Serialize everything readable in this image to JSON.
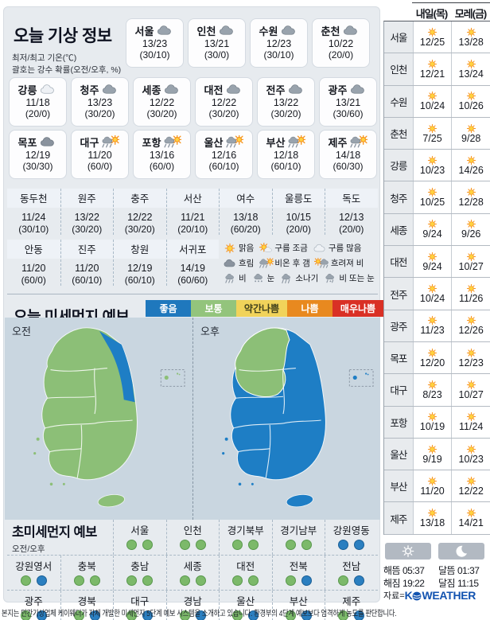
{
  "header": {
    "title": "오늘 기상 정보",
    "subtitle1": "최저/최고 기온(℃)",
    "subtitle2": "괄호는 강수 확률(오전/오후, %)"
  },
  "today": {
    "row1": [
      {
        "name": "서울",
        "icon": "cloud-gray",
        "temp": "13/23",
        "prob": "(30/10)"
      },
      {
        "name": "인천",
        "icon": "cloud-gray",
        "temp": "13/21",
        "prob": "(30/0)"
      },
      {
        "name": "수원",
        "icon": "cloud-gray",
        "temp": "12/23",
        "prob": "(30/10)"
      },
      {
        "name": "춘천",
        "icon": "cloud-gray",
        "temp": "10/22",
        "prob": "(20/0)"
      }
    ],
    "row2": [
      {
        "name": "강릉",
        "icon": "cloud-light",
        "temp": "11/18",
        "prob": "(20/0)"
      },
      {
        "name": "청주",
        "icon": "cloud-gray",
        "temp": "13/23",
        "prob": "(30/20)"
      },
      {
        "name": "세종",
        "icon": "cloud-gray",
        "temp": "12/22",
        "prob": "(30/20)"
      },
      {
        "name": "대전",
        "icon": "cloud-gray",
        "temp": "12/22",
        "prob": "(30/20)"
      },
      {
        "name": "전주",
        "icon": "cloud-gray",
        "temp": "13/22",
        "prob": "(30/20)"
      },
      {
        "name": "광주",
        "icon": "cloud-gray",
        "temp": "13/21",
        "prob": "(30/60)"
      }
    ],
    "row3": [
      {
        "name": "목포",
        "icon": "cloud-dark",
        "temp": "12/19",
        "prob": "(30/30)"
      },
      {
        "name": "대구",
        "icon": "rain-sun",
        "temp": "11/20",
        "prob": "(60/0)"
      },
      {
        "name": "포항",
        "icon": "rain-sun",
        "temp": "13/16",
        "prob": "(60/0)"
      },
      {
        "name": "울산",
        "icon": "rain-sun",
        "temp": "12/16",
        "prob": "(60/10)"
      },
      {
        "name": "부산",
        "icon": "rain-sun",
        "temp": "12/18",
        "prob": "(60/10)"
      },
      {
        "name": "제주",
        "icon": "rain-sun",
        "temp": "14/18",
        "prob": "(60/30)"
      }
    ]
  },
  "extra": {
    "rowA": [
      {
        "name": "동두천",
        "temp": "11/24",
        "prob": "(30/10)"
      },
      {
        "name": "원주",
        "temp": "13/22",
        "prob": "(30/20)"
      },
      {
        "name": "충주",
        "temp": "12/22",
        "prob": "(30/20)"
      },
      {
        "name": "서산",
        "temp": "11/21",
        "prob": "(20/10)"
      },
      {
        "name": "여수",
        "temp": "13/18",
        "prob": "(60/20)"
      },
      {
        "name": "울릉도",
        "temp": "10/15",
        "prob": "(20/0)"
      },
      {
        "name": "독도",
        "temp": "12/13",
        "prob": "(20/0)"
      }
    ],
    "rowB": [
      {
        "name": "안동",
        "temp": "11/20",
        "prob": "(60/0)"
      },
      {
        "name": "진주",
        "temp": "11/20",
        "prob": "(60/10)"
      },
      {
        "name": "창원",
        "temp": "12/19",
        "prob": "(60/10)"
      },
      {
        "name": "서귀포",
        "temp": "14/19",
        "prob": "(60/60)"
      }
    ]
  },
  "icon_legend": [
    [
      {
        "icon": "sun",
        "label": "맑음"
      },
      {
        "icon": "sun-cloud",
        "label": "구름 조금"
      },
      {
        "icon": "cloud-light",
        "label": "구름 많음"
      }
    ],
    [
      {
        "icon": "cloud-dark",
        "label": "흐림"
      },
      {
        "icon": "rain-sun",
        "label": "비온 후 갬"
      },
      {
        "icon": "sun-rain",
        "label": "흐려져 비"
      }
    ],
    [
      {
        "icon": "rain",
        "label": "비"
      },
      {
        "icon": "snow",
        "label": "눈"
      },
      {
        "icon": "shower",
        "label": "소나기"
      },
      {
        "icon": "rain-snow",
        "label": "비 또는 눈"
      }
    ]
  ],
  "dust": {
    "title": "오늘 미세먼지 예보",
    "am_label": "오전",
    "pm_label": "오후",
    "legend": [
      {
        "label": "좋음",
        "bg": "#1f78bd",
        "fg": "#ffffff"
      },
      {
        "label": "보통",
        "bg": "#93c47c",
        "fg": "#ffffff"
      },
      {
        "label": "약간나쁨",
        "bg": "#f1d35a",
        "fg": "#41411c"
      },
      {
        "label": "나쁨",
        "bg": "#e8891f",
        "fg": "#ffffff"
      },
      {
        "label": "매우나쁨",
        "bg": "#d93025",
        "fg": "#ffffff"
      }
    ]
  },
  "fine": {
    "title": "초미세먼지 예보",
    "sub": "오전/오후",
    "row1": [
      {
        "name": "서울",
        "am": "g",
        "pm": "g"
      },
      {
        "name": "인천",
        "am": "g",
        "pm": "g"
      },
      {
        "name": "경기북부",
        "am": "g",
        "pm": "g"
      },
      {
        "name": "경기남부",
        "am": "g",
        "pm": "g"
      },
      {
        "name": "강원영동",
        "am": "b",
        "pm": "b"
      }
    ],
    "row2": [
      {
        "name": "강원영서",
        "am": "g",
        "pm": "b"
      },
      {
        "name": "충북",
        "am": "g",
        "pm": "g"
      },
      {
        "name": "충남",
        "am": "g",
        "pm": "g"
      },
      {
        "name": "세종",
        "am": "g",
        "pm": "g"
      },
      {
        "name": "대전",
        "am": "g",
        "pm": "g"
      },
      {
        "name": "전북",
        "am": "g",
        "pm": "b"
      },
      {
        "name": "전남",
        "am": "g",
        "pm": "b"
      }
    ],
    "row3": [
      {
        "name": "광주",
        "am": "g",
        "pm": "b"
      },
      {
        "name": "경북",
        "am": "g",
        "pm": "b"
      },
      {
        "name": "대구",
        "am": "g",
        "pm": "b"
      },
      {
        "name": "경남",
        "am": "g",
        "pm": "b"
      },
      {
        "name": "울산",
        "am": "g",
        "pm": "b"
      },
      {
        "name": "부산",
        "am": "g",
        "pm": "b"
      },
      {
        "name": "제주",
        "am": "g",
        "pm": "b"
      }
    ]
  },
  "sidebar": {
    "header": [
      "내일(목)",
      "모레(금)"
    ],
    "rows": [
      {
        "name": "서울",
        "icon": "sun",
        "tomorrow": "12/25",
        "day_after": "13/28"
      },
      {
        "name": "인천",
        "icon": "sun",
        "tomorrow": "12/21",
        "day_after": "13/24"
      },
      {
        "name": "수원",
        "icon": "sun",
        "tomorrow": "10/24",
        "day_after": "10/26"
      },
      {
        "name": "춘천",
        "icon": "sun",
        "tomorrow": "7/25",
        "day_after": "9/28"
      },
      {
        "name": "강릉",
        "icon": "sun",
        "tomorrow": "10/23",
        "day_after": "14/26"
      },
      {
        "name": "청주",
        "icon": "sun",
        "tomorrow": "10/25",
        "day_after": "12/28"
      },
      {
        "name": "세종",
        "icon": "sun",
        "tomorrow": "9/24",
        "day_after": "9/26"
      },
      {
        "name": "대전",
        "icon": "sun",
        "tomorrow": "9/24",
        "day_after": "10/27"
      },
      {
        "name": "전주",
        "icon": "sun",
        "tomorrow": "10/24",
        "day_after": "11/26"
      },
      {
        "name": "광주",
        "icon": "sun",
        "tomorrow": "11/23",
        "day_after": "12/26"
      },
      {
        "name": "목포",
        "icon": "sun",
        "tomorrow": "12/20",
        "day_after": "12/23"
      },
      {
        "name": "대구",
        "icon": "sun",
        "tomorrow": "8/23",
        "day_after": "10/27"
      },
      {
        "name": "포항",
        "icon": "sun",
        "tomorrow": "10/19",
        "day_after": "11/24"
      },
      {
        "name": "울산",
        "icon": "sun",
        "tomorrow": "9/19",
        "day_after": "10/23"
      },
      {
        "name": "부산",
        "icon": "sun",
        "tomorrow": "11/20",
        "day_after": "12/22"
      },
      {
        "name": "제주",
        "icon": "sun",
        "tomorrow": "13/18",
        "day_after": "14/21"
      }
    ],
    "sunrise_label": "해뜸",
    "sunrise": "05:37",
    "sunset_label": "해짐",
    "sunset": "19:22",
    "moonrise_label": "달뜸",
    "moonrise": "01:37",
    "moonset_label": "달짐",
    "moonset": "11:15",
    "source_label": "자료=",
    "brand_k": "K",
    "brand_rest": "WEATHER"
  },
  "footer": "본지는 민간기상업체 케이웨더가 자체 개발한 미세먼지 5단계 예보 시스템을 소개하고 있습니다. 환경부의 4단계 예보보다 엄격하게 농도를 판단합니다.",
  "colors": {
    "dot_green": "#7cb96a",
    "dot_blue": "#2b7fc0",
    "map_green": "#8cbf77",
    "map_blue": "#1e7ec5",
    "map_sea": "#c9d6e0",
    "logo_blue": "#1253b0"
  }
}
